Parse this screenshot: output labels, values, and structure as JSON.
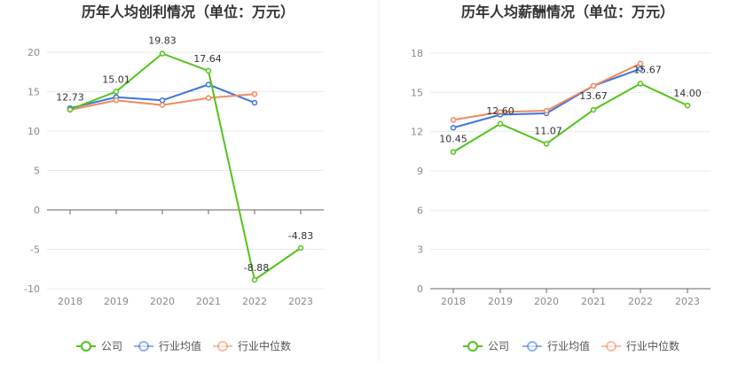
{
  "colors": {
    "company": "#52c41a",
    "industry_avg": "#3b74e0",
    "industry_median": "#f08a5d",
    "grid": "#e6e9ef",
    "axis": "#666666"
  },
  "legend": {
    "company": "公司",
    "industry_avg": "行业均值",
    "industry_median": "行业中位数"
  },
  "chart_data": [
    {
      "type": "line",
      "title": "历年人均创利情况（单位：万元）",
      "categories": [
        "2018",
        "2019",
        "2020",
        "2021",
        "2022",
        "2023"
      ],
      "ylim": [
        -10,
        20
      ],
      "yticks": [
        20,
        15,
        10,
        5,
        0,
        -5,
        -10
      ],
      "series": [
        {
          "name": "公司",
          "key": "company",
          "values": [
            12.73,
            15.01,
            19.83,
            17.64,
            -8.88,
            -4.83
          ],
          "labels": [
            "12.73",
            "15.01",
            "19.83",
            "17.64",
            "-8.88",
            "-4.83"
          ]
        },
        {
          "name": "行业均值",
          "key": "industry_avg",
          "values": [
            12.9,
            14.3,
            13.9,
            15.9,
            13.6,
            null
          ]
        },
        {
          "name": "行业中位数",
          "key": "industry_median",
          "values": [
            12.7,
            13.9,
            13.3,
            14.2,
            14.7,
            null
          ]
        }
      ]
    },
    {
      "type": "line",
      "title": "历年人均薪酬情况（单位：万元）",
      "categories": [
        "2018",
        "2019",
        "2020",
        "2021",
        "2022",
        "2023"
      ],
      "ylim": [
        0,
        18
      ],
      "yticks": [
        18,
        15,
        12,
        9,
        6,
        3,
        0
      ],
      "series": [
        {
          "name": "公司",
          "key": "company",
          "values": [
            10.45,
            12.6,
            11.07,
            13.67,
            15.67,
            14.0
          ],
          "labels": [
            "10.45",
            "12.60",
            "11.07",
            "13.67",
            "15.67",
            "14.00"
          ]
        },
        {
          "name": "行业均值",
          "key": "industry_avg",
          "values": [
            12.3,
            13.3,
            13.4,
            15.5,
            16.8,
            null
          ]
        },
        {
          "name": "行业中位数",
          "key": "industry_median",
          "values": [
            12.9,
            13.5,
            13.6,
            15.5,
            17.2,
            null
          ]
        }
      ]
    }
  ]
}
